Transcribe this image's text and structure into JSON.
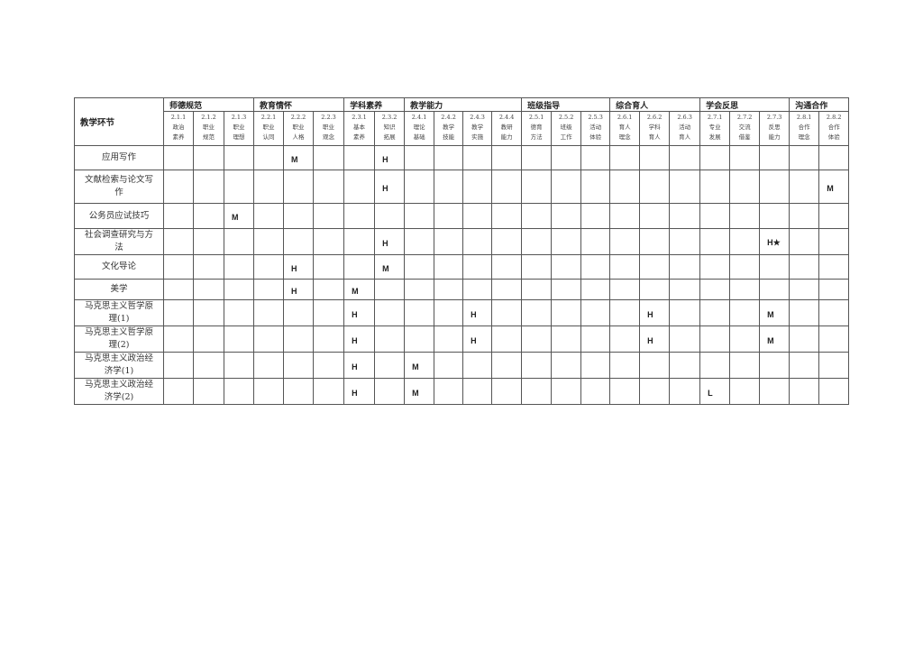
{
  "table": {
    "corner_label": "教学环节",
    "groups": [
      {
        "label": "师德规范",
        "span": 3
      },
      {
        "label": "教育情怀",
        "span": 3
      },
      {
        "label": "学科素养",
        "span": 2
      },
      {
        "label": "教学能力",
        "span": 4
      },
      {
        "label": "班级指导",
        "span": 3
      },
      {
        "label": "综合育人",
        "span": 3
      },
      {
        "label": "学会反思",
        "span": 3
      },
      {
        "label": "沟通合作",
        "span": 2
      }
    ],
    "columns": [
      {
        "code": "2.1.1",
        "name": "政治素养"
      },
      {
        "code": "2.1.2",
        "name": "职业规范"
      },
      {
        "code": "2.1.3",
        "name": "职业理想"
      },
      {
        "code": "2.2.1",
        "name": "职业认同"
      },
      {
        "code": "2.2.2",
        "name": "职业人格"
      },
      {
        "code": "2.2.3",
        "name": "职业观念"
      },
      {
        "code": "2.3.1",
        "name": "基本素养"
      },
      {
        "code": "2.3.2",
        "name": "知识拓展"
      },
      {
        "code": "2.4.1",
        "name": "理论基础"
      },
      {
        "code": "2.4.2",
        "name": "教学技能"
      },
      {
        "code": "2.4.3",
        "name": "教学实施"
      },
      {
        "code": "2.4.4",
        "name": "教研能力"
      },
      {
        "code": "2.5.1",
        "name": "德育方法"
      },
      {
        "code": "2.5.2",
        "name": "班级工作"
      },
      {
        "code": "2.5.3",
        "name": "活动体验"
      },
      {
        "code": "2.6.1",
        "name": "育人理念"
      },
      {
        "code": "2.6.2",
        "name": "学科育人"
      },
      {
        "code": "2.6.3",
        "name": "活动育人"
      },
      {
        "code": "2.7.1",
        "name": "专业发展"
      },
      {
        "code": "2.7.2",
        "name": "交流借鉴"
      },
      {
        "code": "2.7.3",
        "name": "反思能力"
      },
      {
        "code": "2.8.1",
        "name": "合作理念"
      },
      {
        "code": "2.8.2",
        "name": "合作体验"
      }
    ],
    "rows": [
      {
        "name": "应用写作",
        "cells": [
          "",
          "",
          "",
          "",
          "M",
          "",
          "",
          "H",
          "",
          "",
          "",
          "",
          "",
          "",
          "",
          "",
          "",
          "",
          "",
          "",
          "",
          "",
          ""
        ]
      },
      {
        "name": "文献检索与论文写作",
        "cells": [
          "",
          "",
          "",
          "",
          "",
          "",
          "",
          "H",
          "",
          "",
          "",
          "",
          "",
          "",
          "",
          "",
          "",
          "",
          "",
          "",
          "",
          "",
          "M"
        ]
      },
      {
        "name": "公务员应试技巧",
        "cells": [
          "",
          "",
          "M",
          "",
          "",
          "",
          "",
          "",
          "",
          "",
          "",
          "",
          "",
          "",
          "",
          "",
          "",
          "",
          "",
          "",
          "",
          "",
          ""
        ]
      },
      {
        "name": "社会调查研究与方法",
        "cells": [
          "",
          "",
          "",
          "",
          "",
          "",
          "",
          "H",
          "",
          "",
          "",
          "",
          "",
          "",
          "",
          "",
          "",
          "",
          "",
          "",
          "H★",
          "",
          ""
        ]
      },
      {
        "name": "文化导论",
        "cells": [
          "",
          "",
          "",
          "",
          "H",
          "",
          "",
          "M",
          "",
          "",
          "",
          "",
          "",
          "",
          "",
          "",
          "",
          "",
          "",
          "",
          "",
          "",
          ""
        ]
      },
      {
        "name": "美学",
        "cells": [
          "",
          "",
          "",
          "",
          "H",
          "",
          "M",
          "",
          "",
          "",
          "",
          "",
          "",
          "",
          "",
          "",
          "",
          "",
          "",
          "",
          "",
          "",
          ""
        ]
      },
      {
        "name": "马克思主义哲学原理(1)",
        "cells": [
          "",
          "",
          "",
          "",
          "",
          "",
          "H",
          "",
          "",
          "",
          "H",
          "",
          "",
          "",
          "",
          "",
          "H",
          "",
          "",
          "",
          "M",
          "",
          ""
        ]
      },
      {
        "name": "马克思主义哲学原理(2)",
        "cells": [
          "",
          "",
          "",
          "",
          "",
          "",
          "H",
          "",
          "",
          "",
          "H",
          "",
          "",
          "",
          "",
          "",
          "H",
          "",
          "",
          "",
          "M",
          "",
          ""
        ]
      },
      {
        "name": "马克思主义政治经济学(1)",
        "cells": [
          "",
          "",
          "",
          "",
          "",
          "",
          "H",
          "",
          "M",
          "",
          "",
          "",
          "",
          "",
          "",
          "",
          "",
          "",
          "",
          "",
          "",
          "",
          ""
        ]
      },
      {
        "name": "马克思主义政治经济学(2)",
        "cells": [
          "",
          "",
          "",
          "",
          "",
          "",
          "H",
          "",
          "M",
          "",
          "",
          "",
          "",
          "",
          "",
          "",
          "",
          "",
          "L",
          "",
          "",
          "",
          ""
        ]
      }
    ]
  }
}
